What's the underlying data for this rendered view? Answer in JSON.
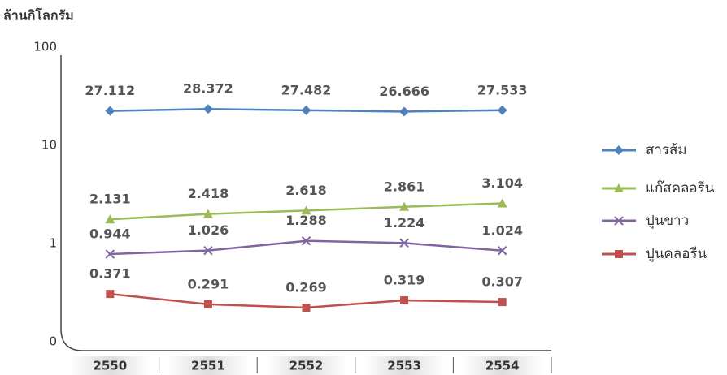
{
  "chart_data": {
    "type": "line",
    "title": "ล้านกิโลกรัม",
    "categories": [
      "2550",
      "2551",
      "2552",
      "2553",
      "2554"
    ],
    "series": [
      {
        "name": "สารส้ม",
        "color": "#4f81bd",
        "marker": "diamond",
        "values": [
          27.112,
          28.372,
          27.482,
          26.666,
          27.533
        ]
      },
      {
        "name": "แก๊สคลอรีน",
        "color": "#9bbb59",
        "marker": "triangle",
        "values": [
          2.131,
          2.418,
          2.618,
          2.861,
          3.104
        ]
      },
      {
        "name": "ปูนขาว",
        "color": "#8064a2",
        "marker": "x",
        "values": [
          0.944,
          1.026,
          1.288,
          1.224,
          1.024
        ]
      },
      {
        "name": "ปูนคลอรีน",
        "color": "#c0504d",
        "marker": "square",
        "values": [
          0.371,
          0.291,
          0.269,
          0.319,
          0.307
        ]
      }
    ],
    "log_scale": true,
    "ylim": [
      0.1,
      100
    ],
    "yticks": [
      {
        "value": 0.1,
        "label": "0"
      },
      1,
      10,
      100
    ],
    "grid": true,
    "legend": "right"
  }
}
